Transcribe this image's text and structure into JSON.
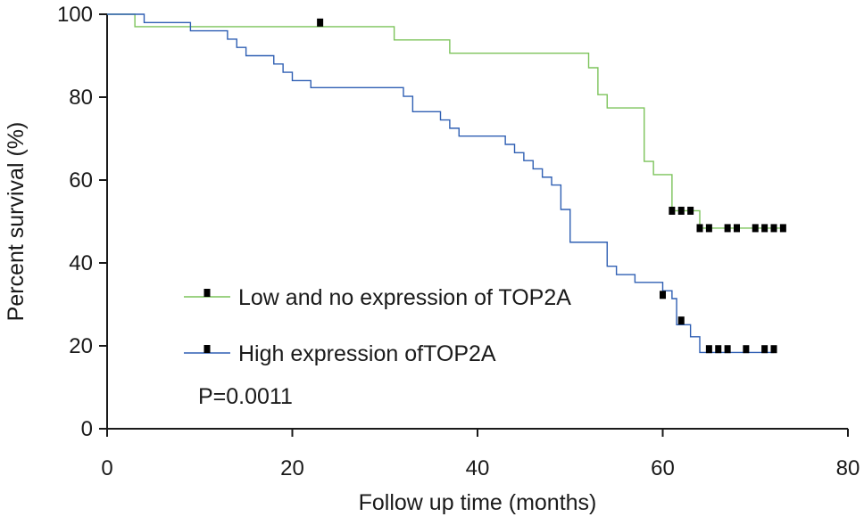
{
  "chart_data": {
    "type": "line",
    "subtype": "kaplan-meier",
    "title": "",
    "xlabel": "Follow up time (months)",
    "ylabel": "Percent survival (%)",
    "xlim": [
      0,
      80
    ],
    "ylim": [
      0,
      100
    ],
    "xticks": [
      0,
      20,
      40,
      60,
      80
    ],
    "yticks": [
      0,
      20,
      40,
      60,
      80,
      100
    ],
    "grid": false,
    "legend_position": "bottom-left",
    "annotation": "P=0.0011",
    "series": [
      {
        "name": "Low and no expression of TOP2A",
        "color": "#7cc35a",
        "marker": "square",
        "marker_color": "#000000",
        "step_points": [
          [
            0,
            100
          ],
          [
            3,
            100
          ],
          [
            3,
            97
          ],
          [
            31,
            97
          ],
          [
            31,
            93.8
          ],
          [
            37,
            93.8
          ],
          [
            37,
            90.6
          ],
          [
            52,
            90.6
          ],
          [
            52,
            87.1
          ],
          [
            53,
            87.1
          ],
          [
            53,
            80.6
          ],
          [
            54,
            80.6
          ],
          [
            54,
            77.4
          ],
          [
            58,
            77.4
          ],
          [
            58,
            64.5
          ],
          [
            59,
            64.5
          ],
          [
            59,
            61.3
          ],
          [
            61,
            61.3
          ],
          [
            61,
            52.6
          ],
          [
            64,
            52.6
          ],
          [
            64,
            48.4
          ],
          [
            73,
            48.4
          ]
        ],
        "censored": [
          [
            23,
            98
          ],
          [
            61,
            52.6
          ],
          [
            62,
            52.6
          ],
          [
            63,
            52.6
          ],
          [
            64,
            48.4
          ],
          [
            65,
            48.4
          ],
          [
            67,
            48.4
          ],
          [
            68,
            48.4
          ],
          [
            70,
            48.4
          ],
          [
            71,
            48.4
          ],
          [
            72,
            48.4
          ],
          [
            73,
            48.4
          ]
        ]
      },
      {
        "name": "High expression ofTOP2A",
        "color": "#2f5fb3",
        "marker": "square",
        "marker_color": "#000000",
        "step_points": [
          [
            0,
            100
          ],
          [
            4,
            100
          ],
          [
            4,
            98
          ],
          [
            9,
            98
          ],
          [
            9,
            96
          ],
          [
            13,
            96
          ],
          [
            13,
            94
          ],
          [
            14,
            94
          ],
          [
            14,
            92
          ],
          [
            15,
            92
          ],
          [
            15,
            90
          ],
          [
            18,
            90
          ],
          [
            18,
            88
          ],
          [
            19,
            88
          ],
          [
            19,
            86
          ],
          [
            20,
            86
          ],
          [
            20,
            84
          ],
          [
            22,
            84
          ],
          [
            22,
            82.3
          ],
          [
            32,
            82.3
          ],
          [
            32,
            80.2
          ],
          [
            33,
            80.2
          ],
          [
            33,
            76.5
          ],
          [
            36,
            76.5
          ],
          [
            36,
            74.5
          ],
          [
            37,
            74.5
          ],
          [
            37,
            72.5
          ],
          [
            38,
            72.5
          ],
          [
            38,
            70.6
          ],
          [
            43,
            70.6
          ],
          [
            43,
            68.6
          ],
          [
            44,
            68.6
          ],
          [
            44,
            66.6
          ],
          [
            45,
            66.6
          ],
          [
            45,
            64.7
          ],
          [
            46,
            64.7
          ],
          [
            46,
            62.7
          ],
          [
            47,
            62.7
          ],
          [
            47,
            60.7
          ],
          [
            48,
            60.7
          ],
          [
            48,
            58.8
          ],
          [
            49,
            58.8
          ],
          [
            49,
            52.9
          ],
          [
            50,
            52.9
          ],
          [
            50,
            45
          ],
          [
            54,
            45
          ],
          [
            54,
            39.2
          ],
          [
            55,
            39.2
          ],
          [
            55,
            37.2
          ],
          [
            57,
            37.2
          ],
          [
            57,
            35.3
          ],
          [
            60,
            35.3
          ],
          [
            60,
            33.3
          ],
          [
            61,
            33.3
          ],
          [
            61,
            31.4
          ],
          [
            61.5,
            31.4
          ],
          [
            61.5,
            25.1
          ],
          [
            63,
            25.1
          ],
          [
            63,
            22.2
          ],
          [
            64,
            22.2
          ],
          [
            64,
            18.4
          ],
          [
            72,
            18.4
          ]
        ],
        "censored": [
          [
            60,
            32.3
          ],
          [
            62,
            26.1
          ],
          [
            65,
            19.2
          ],
          [
            66,
            19.2
          ],
          [
            67,
            19.2
          ],
          [
            69,
            19.2
          ],
          [
            71,
            19.2
          ],
          [
            72,
            19.2
          ]
        ]
      }
    ]
  }
}
